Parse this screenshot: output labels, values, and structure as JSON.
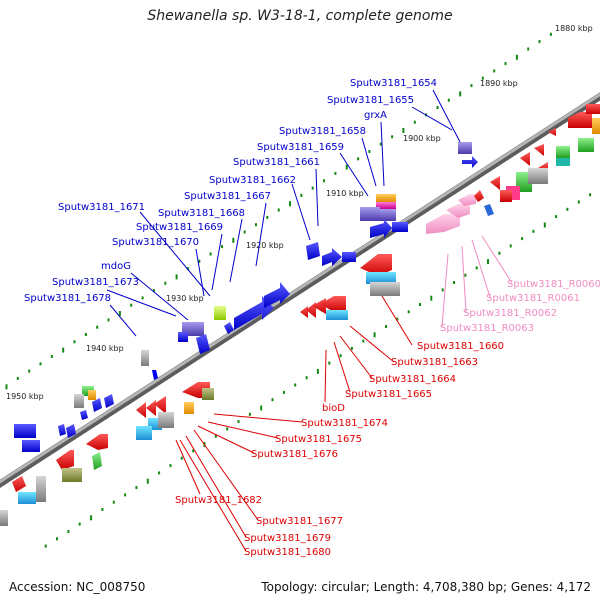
{
  "title": "Shewanella sp. W3-18-1, complete genome",
  "footer": {
    "accession": "Accession: NC_008750",
    "summary": "Topology: circular; Length: 4,708,380 bp; Genes: 4,172"
  },
  "colors": {
    "forward_label": "#0000cc",
    "reverse_label": "#dd0000",
    "rna_label": "#f08cc0",
    "forward_gene": "#0000ee",
    "reverse_gene": "#ee0000",
    "tick": "#138a13",
    "backbone": "#8a8a8a"
  },
  "ticks": [
    {
      "label": "1880 kbp"
    },
    {
      "label": "1890 kbp"
    },
    {
      "label": "1900 kbp"
    },
    {
      "label": "1910 kbp"
    },
    {
      "label": "1920 kbp"
    },
    {
      "label": "1930 kbp"
    },
    {
      "label": "1940 kbp"
    },
    {
      "label": "1950 kbp"
    }
  ],
  "forward_labels": [
    "Sputw3181_1654",
    "Sputw3181_1655",
    "grxA",
    "Sputw3181_1658",
    "Sputw3181_1659",
    "Sputw3181_1661",
    "Sputw3181_1662",
    "Sputw3181_1667",
    "Sputw3181_1671",
    "Sputw3181_1668",
    "Sputw3181_1669",
    "Sputw3181_1670",
    "mdoG",
    "Sputw3181_1673",
    "Sputw3181_1678"
  ],
  "reverse_labels": [
    "Sputw3181_1660",
    "Sputw3181_1663",
    "Sputw3181_1664",
    "Sputw3181_1665",
    "bioD",
    "Sputw3181_1674",
    "Sputw3181_1675",
    "Sputw3181_1676",
    "Sputw3181_1682",
    "Sputw3181_1677",
    "Sputw3181_1679",
    "Sputw3181_1680"
  ],
  "rna_labels": [
    "Sputw3181_R0060",
    "Sputw3181_R0061",
    "Sputw3181_R0062",
    "Sputw3181_R0063"
  ]
}
